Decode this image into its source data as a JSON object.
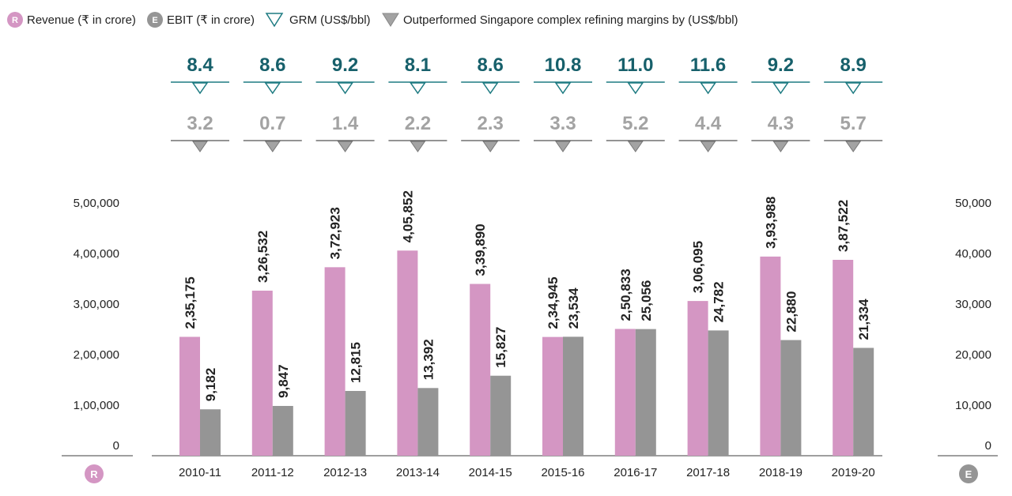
{
  "legend": {
    "revenue": {
      "badge": "R",
      "label": "Revenue (₹ in crore)"
    },
    "ebit": {
      "badge": "E",
      "label": "EBIT (₹ in crore)"
    },
    "grm": {
      "label": "GRM (US$/bbl)"
    },
    "outperformed": {
      "label": "Outperformed Singapore complex refining margins by (US$/bbl)"
    }
  },
  "axis_badges": {
    "left": "R",
    "right": "E"
  },
  "colors": {
    "revenue": "#d496c3",
    "ebit": "#959595",
    "grm_text": "#17606b",
    "grm_marker_fill": "#ffffff",
    "grm_marker_stroke": "#1e7b82",
    "out_text": "#a3a3a3",
    "out_marker_fill": "#a3a3a3",
    "badge_revenue": "#d496c3",
    "badge_ebit": "#959595",
    "axis_line": "#666666"
  },
  "chart_data": {
    "type": "bar",
    "categories": [
      "2010-11",
      "2011-12",
      "2012-13",
      "2013-14",
      "2014-15",
      "2015-16",
      "2016-17",
      "2017-18",
      "2018-19",
      "2019-20"
    ],
    "series": [
      {
        "name": "Revenue (₹ in crore)",
        "axis": "left",
        "values": [
          235175,
          326532,
          372923,
          405852,
          339890,
          234945,
          250833,
          306095,
          393988,
          387522
        ],
        "labels": [
          "2,35,175",
          "3,26,532",
          "3,72,923",
          "4,05,852",
          "3,39,890",
          "2,34,945",
          "2,50,833",
          "3,06,095",
          "3,93,988",
          "3,87,522"
        ]
      },
      {
        "name": "EBIT (₹ in crore)",
        "axis": "right",
        "values": [
          9182,
          9847,
          12815,
          13392,
          15827,
          23534,
          25056,
          24782,
          22880,
          21334
        ],
        "labels": [
          "9,182",
          "9,847",
          "12,815",
          "13,392",
          "15,827",
          "23,534",
          "25,056",
          "24,782",
          "22,880",
          "21,334"
        ]
      }
    ],
    "grm": {
      "name": "GRM (US$/bbl)",
      "labels": [
        "8.4",
        "8.6",
        "9.2",
        "8.1",
        "8.6",
        "10.8",
        "11.0",
        "11.6",
        "9.2",
        "8.9"
      ]
    },
    "outperformed": {
      "name": "Outperformed Singapore complex refining margins by (US$/bbl)",
      "labels": [
        "3.2",
        "0.7",
        "1.4",
        "2.2",
        "2.3",
        "3.3",
        "5.2",
        "4.4",
        "4.3",
        "5.7"
      ]
    },
    "left_axis": {
      "ylim": [
        0,
        500000
      ],
      "ticks": [
        0,
        100000,
        200000,
        300000,
        400000,
        500000
      ],
      "tick_labels": [
        "0",
        "1,00,000",
        "2,00,000",
        "3,00,000",
        "4,00,000",
        "5,00,000"
      ]
    },
    "right_axis": {
      "ylim": [
        0,
        50000
      ],
      "ticks": [
        0,
        10000,
        20000,
        30000,
        40000,
        50000
      ],
      "tick_labels": [
        "0",
        "10,000",
        "20,000",
        "30,000",
        "40,000",
        "50,000"
      ]
    },
    "legend_position": "top-left",
    "grid": false
  }
}
